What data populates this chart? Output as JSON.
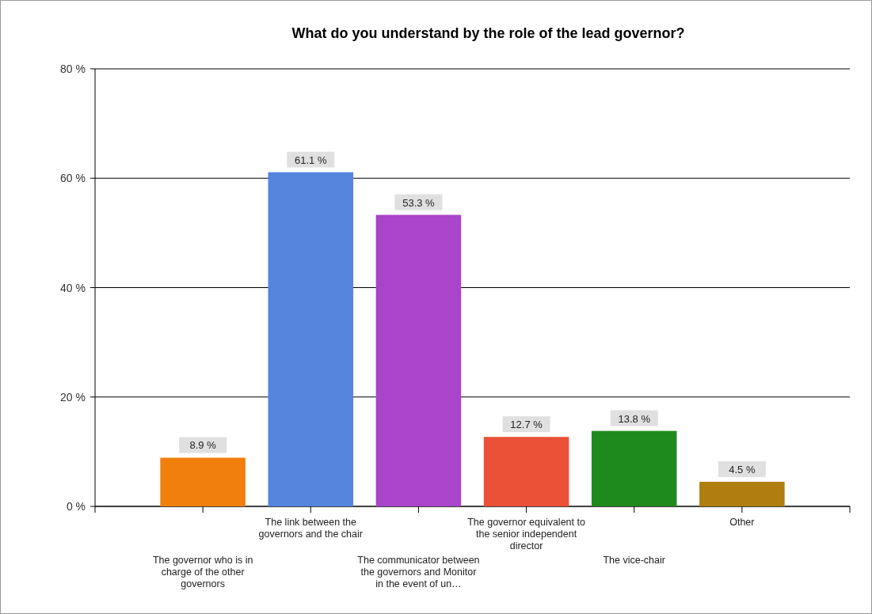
{
  "chart_data": {
    "type": "bar",
    "title": "What do you understand by the role of the lead governor?",
    "categories": [
      "The governor who is in charge of the other governors",
      "The link between the governors and the chair",
      "The communicator between the governors and Monitor in the event of un…",
      "The governor equivalent to the senior independent director",
      "The vice-chair",
      "Other"
    ],
    "values": [
      8.9,
      61.1,
      53.3,
      12.7,
      13.8,
      4.5
    ],
    "colors": [
      "#f07f0c",
      "#5585dd",
      "#aa44c8",
      "#ea5137",
      "#1e8a1e",
      "#b07d10"
    ],
    "value_labels": [
      "8.9 %",
      "61.1 %",
      "53.3 %",
      "12.7 %",
      "13.8 %",
      "4.5 %"
    ],
    "ylim": [
      0,
      80
    ],
    "yticks": [
      {
        "value": 0,
        "label": "0 %"
      },
      {
        "value": 20,
        "label": "20 %"
      },
      {
        "value": 40,
        "label": "40 %"
      },
      {
        "value": 60,
        "label": "60 %"
      },
      {
        "value": 80,
        "label": "80 %"
      }
    ],
    "grid": "y"
  }
}
